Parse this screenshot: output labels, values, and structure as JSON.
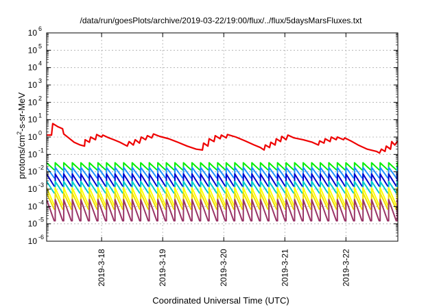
{
  "chart_data": {
    "type": "line",
    "title": "/data/run/goesPlots/archive/2019-03-22/19:00/flux/../flux/5daysMarsFluxes.txt",
    "xlabel": "Coordinated Universal Time (UTC)",
    "ylabel": "protons/cm²-s-sr-MeV",
    "yscale": "log",
    "ylim": [
      1e-06,
      1000000.0
    ],
    "xlim": [
      17.1,
      22.85
    ],
    "x_unit": "day of March 2019",
    "grid": true,
    "legend": "none",
    "y_ticks": [
      {
        "base": "10",
        "exp": "-6",
        "value": -6
      },
      {
        "base": "10",
        "exp": "-5",
        "value": -5
      },
      {
        "base": "10",
        "exp": "-4",
        "value": -4
      },
      {
        "base": "10",
        "exp": "-3",
        "value": -3
      },
      {
        "base": "10",
        "exp": "-2",
        "value": -2
      },
      {
        "base": "10",
        "exp": "-1",
        "value": -1
      },
      {
        "base": "10",
        "exp": "0",
        "value": 0
      },
      {
        "base": "10",
        "exp": "1",
        "value": 1
      },
      {
        "base": "10",
        "exp": "2",
        "value": 2
      },
      {
        "base": "10",
        "exp": "3",
        "value": 3
      },
      {
        "base": "10",
        "exp": "4",
        "value": 4
      },
      {
        "base": "10",
        "exp": "5",
        "value": 5
      },
      {
        "base": "10",
        "exp": "6",
        "value": 6
      }
    ],
    "x_ticks": [
      {
        "label": "2019-3-18",
        "value": 18
      },
      {
        "label": "2019-3-19",
        "value": 19
      },
      {
        "label": "2019-3-20",
        "value": 20
      },
      {
        "label": "2019-3-21",
        "value": 21
      },
      {
        "label": "2019-3-22",
        "value": 22
      }
    ],
    "series": [
      {
        "color": "#ee0000",
        "width": 2.2,
        "mode": "explicit",
        "points": [
          [
            17.1,
            1.3
          ],
          [
            17.18,
            1.3
          ],
          [
            17.2,
            6.0
          ],
          [
            17.28,
            4.0
          ],
          [
            17.36,
            3.0
          ],
          [
            17.38,
            1.5
          ],
          [
            17.46,
            0.9
          ],
          [
            17.55,
            0.5
          ],
          [
            17.65,
            0.35
          ],
          [
            17.72,
            0.3
          ],
          [
            17.73,
            0.7
          ],
          [
            17.8,
            0.5
          ],
          [
            17.82,
            1.0
          ],
          [
            17.9,
            0.7
          ],
          [
            17.92,
            1.4
          ],
          [
            18.0,
            1.0
          ],
          [
            18.02,
            1.3
          ],
          [
            18.12,
            0.9
          ],
          [
            18.2,
            0.7
          ],
          [
            18.3,
            0.5
          ],
          [
            18.42,
            0.3
          ],
          [
            18.45,
            0.55
          ],
          [
            18.52,
            0.35
          ],
          [
            18.55,
            0.7
          ],
          [
            18.62,
            0.45
          ],
          [
            18.65,
            1.0
          ],
          [
            18.72,
            0.7
          ],
          [
            18.75,
            1.2
          ],
          [
            18.82,
            0.9
          ],
          [
            18.85,
            1.5
          ],
          [
            18.95,
            1.1
          ],
          [
            19.1,
            0.8
          ],
          [
            19.25,
            0.5
          ],
          [
            19.4,
            0.3
          ],
          [
            19.55,
            0.2
          ],
          [
            19.65,
            0.18
          ],
          [
            19.67,
            0.45
          ],
          [
            19.74,
            0.3
          ],
          [
            19.76,
            0.8
          ],
          [
            19.84,
            0.55
          ],
          [
            19.86,
            1.2
          ],
          [
            19.94,
            0.8
          ],
          [
            19.96,
            1.3
          ],
          [
            20.04,
            0.9
          ],
          [
            20.06,
            1.4
          ],
          [
            20.2,
            1.0
          ],
          [
            20.35,
            0.6
          ],
          [
            20.5,
            0.35
          ],
          [
            20.6,
            0.25
          ],
          [
            20.66,
            0.18
          ],
          [
            20.68,
            0.35
          ],
          [
            20.75,
            0.25
          ],
          [
            20.77,
            0.5
          ],
          [
            20.84,
            0.35
          ],
          [
            20.86,
            0.8
          ],
          [
            20.93,
            0.55
          ],
          [
            20.95,
            1.1
          ],
          [
            21.02,
            0.7
          ],
          [
            21.05,
            1.3
          ],
          [
            21.15,
            0.9
          ],
          [
            21.3,
            0.7
          ],
          [
            21.45,
            0.5
          ],
          [
            21.55,
            0.35
          ],
          [
            21.57,
            0.6
          ],
          [
            21.64,
            0.45
          ],
          [
            21.66,
            0.8
          ],
          [
            21.74,
            0.55
          ],
          [
            21.76,
            1.0
          ],
          [
            21.84,
            0.7
          ],
          [
            21.86,
            1.0
          ],
          [
            21.96,
            0.7
          ],
          [
            21.98,
            0.9
          ],
          [
            22.08,
            0.6
          ],
          [
            22.2,
            0.35
          ],
          [
            22.35,
            0.2
          ],
          [
            22.5,
            0.15
          ],
          [
            22.55,
            0.12
          ],
          [
            22.58,
            0.2
          ],
          [
            22.64,
            0.15
          ],
          [
            22.66,
            0.3
          ],
          [
            22.73,
            0.2
          ],
          [
            22.75,
            0.55
          ],
          [
            22.8,
            0.35
          ],
          [
            22.85,
            0.6
          ]
        ]
      },
      {
        "color": "#00ee00",
        "width": 2.0,
        "mode": "sawtooth",
        "period": 0.14,
        "phase": 17.1,
        "high": 0.033,
        "low": 0.013
      },
      {
        "color": "#1a90ff",
        "width": 2.0,
        "mode": "sawtooth",
        "period": 0.14,
        "phase": 17.1,
        "high": 0.018,
        "low": 0.0045
      },
      {
        "color": "#0000cc",
        "width": 2.0,
        "mode": "sawtooth",
        "period": 0.14,
        "phase": 17.1,
        "high": 0.0075,
        "low": 0.0015
      },
      {
        "color": "#00cccc",
        "width": 2.0,
        "mode": "sawtooth",
        "period": 0.14,
        "phase": 17.1,
        "high": 0.0028,
        "low": 0.0006
      },
      {
        "color": "#ffff00",
        "width": 2.0,
        "mode": "sawtooth",
        "period": 0.14,
        "phase": 17.1,
        "high": 0.0012,
        "low": 0.00012
      },
      {
        "color": "#eedd00",
        "width": 2.0,
        "mode": "sawtooth",
        "period": 0.14,
        "phase": 17.1,
        "high": 0.0006,
        "low": 7e-05
      },
      {
        "color": "#993366",
        "width": 2.0,
        "mode": "sawtooth",
        "period": 0.14,
        "phase": 17.1,
        "high": 0.00025,
        "low": 1.5e-05
      }
    ]
  }
}
